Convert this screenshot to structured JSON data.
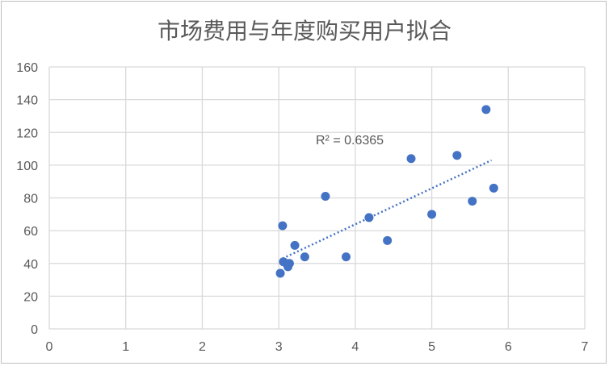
{
  "chart_data": {
    "type": "scatter",
    "title": "市场费用与年度购买用户拟合",
    "xlabel": "",
    "ylabel": "",
    "xlim": [
      0,
      7
    ],
    "ylim": [
      0,
      160
    ],
    "xticks": [
      0,
      1,
      2,
      3,
      4,
      5,
      6,
      7
    ],
    "yticks": [
      0,
      20,
      40,
      60,
      80,
      100,
      120,
      140,
      160
    ],
    "grid": true,
    "legend": "none",
    "point_color": "#4472c4",
    "trendline": {
      "type": "linear",
      "style": "dotted",
      "color": "#4472c4",
      "x_range": [
        3.05,
        5.78
      ],
      "y_range": [
        43,
        103
      ],
      "r_squared_label": "R² = 0.6365"
    },
    "points": [
      {
        "x": 3.02,
        "y": 34
      },
      {
        "x": 3.05,
        "y": 63
      },
      {
        "x": 3.06,
        "y": 41
      },
      {
        "x": 3.1,
        "y": 40
      },
      {
        "x": 3.12,
        "y": 38
      },
      {
        "x": 3.14,
        "y": 40
      },
      {
        "x": 3.21,
        "y": 51
      },
      {
        "x": 3.34,
        "y": 44
      },
      {
        "x": 3.61,
        "y": 81
      },
      {
        "x": 3.88,
        "y": 44
      },
      {
        "x": 4.18,
        "y": 68
      },
      {
        "x": 4.42,
        "y": 54
      },
      {
        "x": 4.73,
        "y": 104
      },
      {
        "x": 5.0,
        "y": 70
      },
      {
        "x": 5.33,
        "y": 106
      },
      {
        "x": 5.53,
        "y": 78
      },
      {
        "x": 5.71,
        "y": 134
      },
      {
        "x": 5.81,
        "y": 86
      }
    ]
  }
}
